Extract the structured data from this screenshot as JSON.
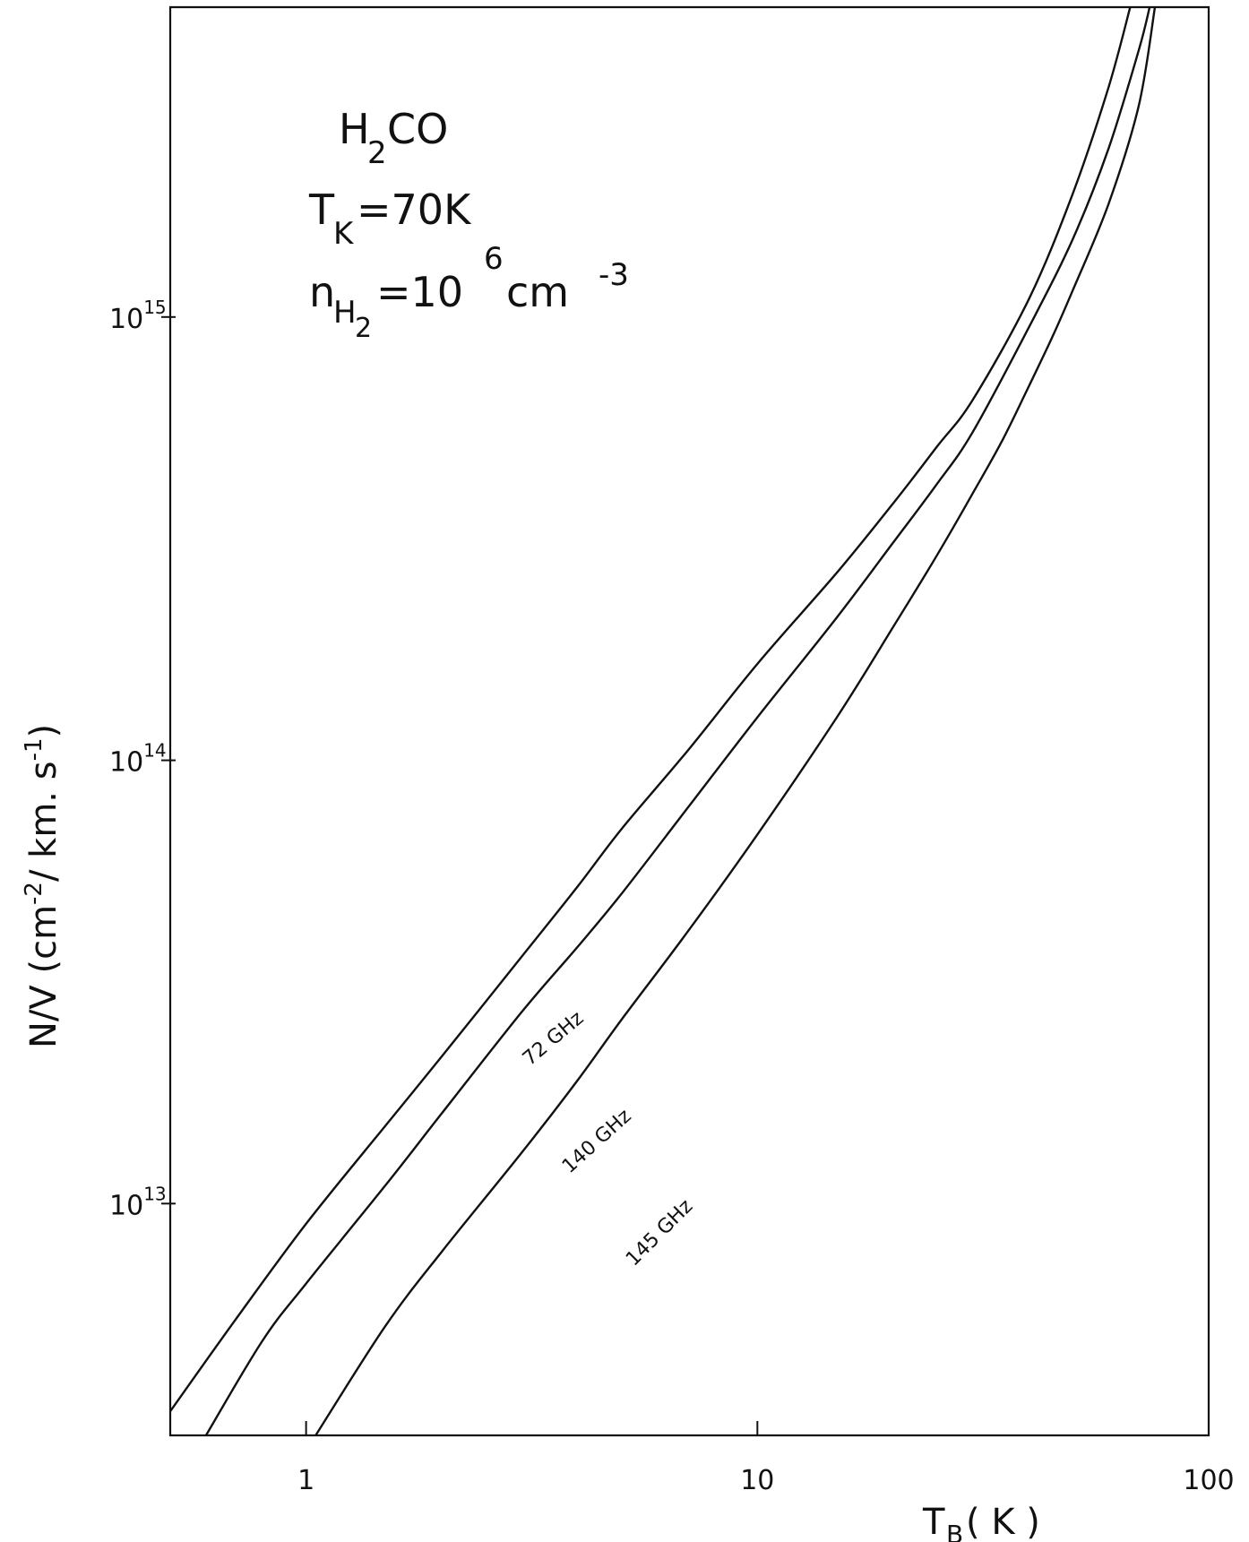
{
  "chart_data": {
    "type": "line",
    "title": "",
    "annotations": {
      "molecule": {
        "base": "H",
        "sub": "2",
        "rest": "CO"
      },
      "kinetic_temperature": {
        "base": "T",
        "sub": "K",
        "rest": "=70K"
      },
      "density": {
        "base": "n",
        "sub1": "H",
        "sub2": "2",
        "mid": "=10",
        "sup": "6",
        "unit": " cm",
        "unit_sup": "-3"
      }
    },
    "xlabel": {
      "base": "T",
      "sub": "B",
      "rest": " ( K )"
    },
    "ylabel": {
      "pre": "N/V   (cm",
      "sup1": "-2",
      "mid": "/ km. s",
      "sup2": "-1",
      "post": ")"
    },
    "x_scale": "log",
    "y_scale": "log",
    "xlim": [
      0.5,
      100
    ],
    "ylim": [
      3000000000000.0,
      5000000000000000.0
    ],
    "x_ticks": [
      {
        "value": 1,
        "label": "1"
      },
      {
        "value": 10,
        "label": "10"
      },
      {
        "value": 100,
        "label": "100"
      }
    ],
    "y_ticks": [
      {
        "value": 10000000000000.0,
        "base": "10",
        "exp": "13"
      },
      {
        "value": 100000000000000.0,
        "base": "10",
        "exp": "14"
      },
      {
        "value": 1000000000000000.0,
        "base": "10",
        "exp": "15"
      }
    ],
    "grid": false,
    "legend": "none",
    "series": [
      {
        "name": "72 GHz",
        "x": [
          0.5,
          0.7,
          1,
          1.5,
          2,
          3,
          4,
          5,
          7,
          10,
          15,
          20,
          25,
          30,
          40,
          50,
          60,
          67
        ],
        "y": [
          3400000000000.0,
          5500000000000.0,
          9000000000000.0,
          15000000000000.0,
          21500000000000.0,
          36000000000000.0,
          52000000000000.0,
          70000000000000.0,
          105000000000000.0,
          165000000000000.0,
          265000000000000.0,
          380000000000000.0,
          510000000000000.0,
          650000000000000.0,
          1100000000000000.0,
          1900000000000000.0,
          3300000000000000.0,
          5000000000000000.0
        ]
      },
      {
        "name": "140 GHz",
        "x": [
          0.6,
          0.8,
          1,
          1.5,
          2,
          3,
          4,
          5,
          7,
          10,
          15,
          20,
          25,
          30,
          40,
          50,
          60,
          70,
          74
        ],
        "y": [
          3000000000000.0,
          4900000000000.0,
          6600000000000.0,
          11000000000000.0,
          16000000000000.0,
          27000000000000.0,
          38000000000000.0,
          50000000000000.0,
          78000000000000.0,
          125000000000000.0,
          210000000000000.0,
          310000000000000.0,
          420000000000000.0,
          550000000000000.0,
          950000000000000.0,
          1500000000000000.0,
          2400000000000000.0,
          4000000000000000.0,
          5000000000000000.0
        ]
      },
      {
        "name": "145 GHz",
        "x": [
          1.05,
          1.5,
          2,
          3,
          4,
          5,
          7,
          10,
          15,
          20,
          25,
          30,
          35,
          40,
          45,
          50,
          60,
          70,
          76
        ],
        "y": [
          3000000000000.0,
          5300000000000.0,
          7800000000000.0,
          13000000000000.0,
          19000000000000.0,
          26000000000000.0,
          41000000000000.0,
          68000000000000.0,
          125000000000000.0,
          200000000000000.0,
          290000000000000.0,
          400000000000000.0,
          530000000000000.0,
          700000000000000.0,
          900000000000000.0,
          1150000000000000.0,
          1800000000000000.0,
          3000000000000000.0,
          5000000000000000.0
        ]
      }
    ],
    "series_label_positions": [
      {
        "series": "72 GHz",
        "x": 3.6,
        "y": 23000000000000.0,
        "rotation": -40
      },
      {
        "series": "140 GHz",
        "x": 4.5,
        "y": 13500000000000.0,
        "rotation": -42
      },
      {
        "series": "145 GHz",
        "x": 6.2,
        "y": 8400000000000.0,
        "rotation": -45
      }
    ]
  }
}
